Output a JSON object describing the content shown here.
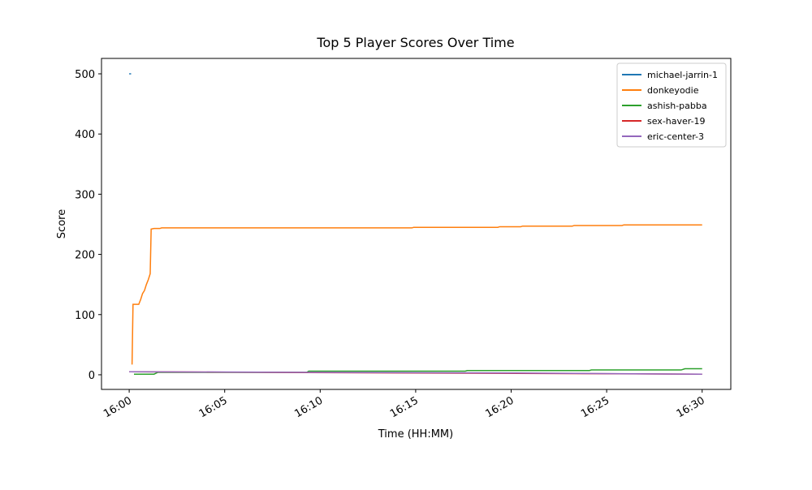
{
  "chart_data": {
    "type": "line",
    "title": "Top 5 Player Scores Over Time",
    "x_label": "Time (HH:MM)",
    "y_label": "Score",
    "xlim": [
      -1.45,
      31.5
    ],
    "ylim": [
      -24.3,
      525.6
    ],
    "xticks": [
      {
        "value": 0,
        "label": "16:00"
      },
      {
        "value": 5,
        "label": "16:05"
      },
      {
        "value": 10,
        "label": "16:10"
      },
      {
        "value": 15,
        "label": "16:15"
      },
      {
        "value": 20,
        "label": "16:20"
      },
      {
        "value": 25,
        "label": "16:25"
      },
      {
        "value": 30,
        "label": "16:30"
      }
    ],
    "yticks": [
      0,
      100,
      200,
      300,
      400,
      500
    ],
    "legend": "upper right",
    "series": [
      {
        "name": "michael-jarrin-1",
        "color": "#1f77b4",
        "x": [
          0,
          0.1
        ],
        "values": [
          500,
          500
        ]
      },
      {
        "name": "donkeyodie",
        "color": "#ff7f0e",
        "x": [
          0.15,
          0.2,
          0.5,
          0.6,
          0.7,
          0.8,
          0.9,
          1.0,
          1.1,
          1.15,
          1.3,
          1.6,
          1.7,
          14.8,
          14.9,
          19.3,
          19.4,
          20.5,
          20.6,
          23.2,
          23.3,
          25.8,
          25.9,
          30
        ],
        "values": [
          17,
          117,
          117,
          125,
          135,
          140,
          150,
          158,
          168,
          242,
          243,
          243,
          244,
          244,
          245,
          245,
          246,
          246,
          247,
          247,
          248,
          248,
          249,
          249
        ]
      },
      {
        "name": "ashish-pabba",
        "color": "#2ca02c",
        "x": [
          0.25,
          1.3,
          1.5,
          9.3,
          9.4,
          17.6,
          17.7,
          24.1,
          24.2,
          28.9,
          29.1,
          30
        ],
        "values": [
          1,
          1,
          4,
          4,
          6,
          6,
          7,
          7,
          8,
          8,
          10,
          10
        ]
      },
      {
        "name": "sex-haver-19",
        "color": "#d62728",
        "x": [
          0,
          30
        ],
        "values": [
          5,
          1
        ]
      },
      {
        "name": "eric-center-3",
        "color": "#9467bd",
        "x": [
          0,
          10,
          20,
          30
        ],
        "values": [
          5,
          4,
          3,
          1
        ]
      }
    ]
  }
}
